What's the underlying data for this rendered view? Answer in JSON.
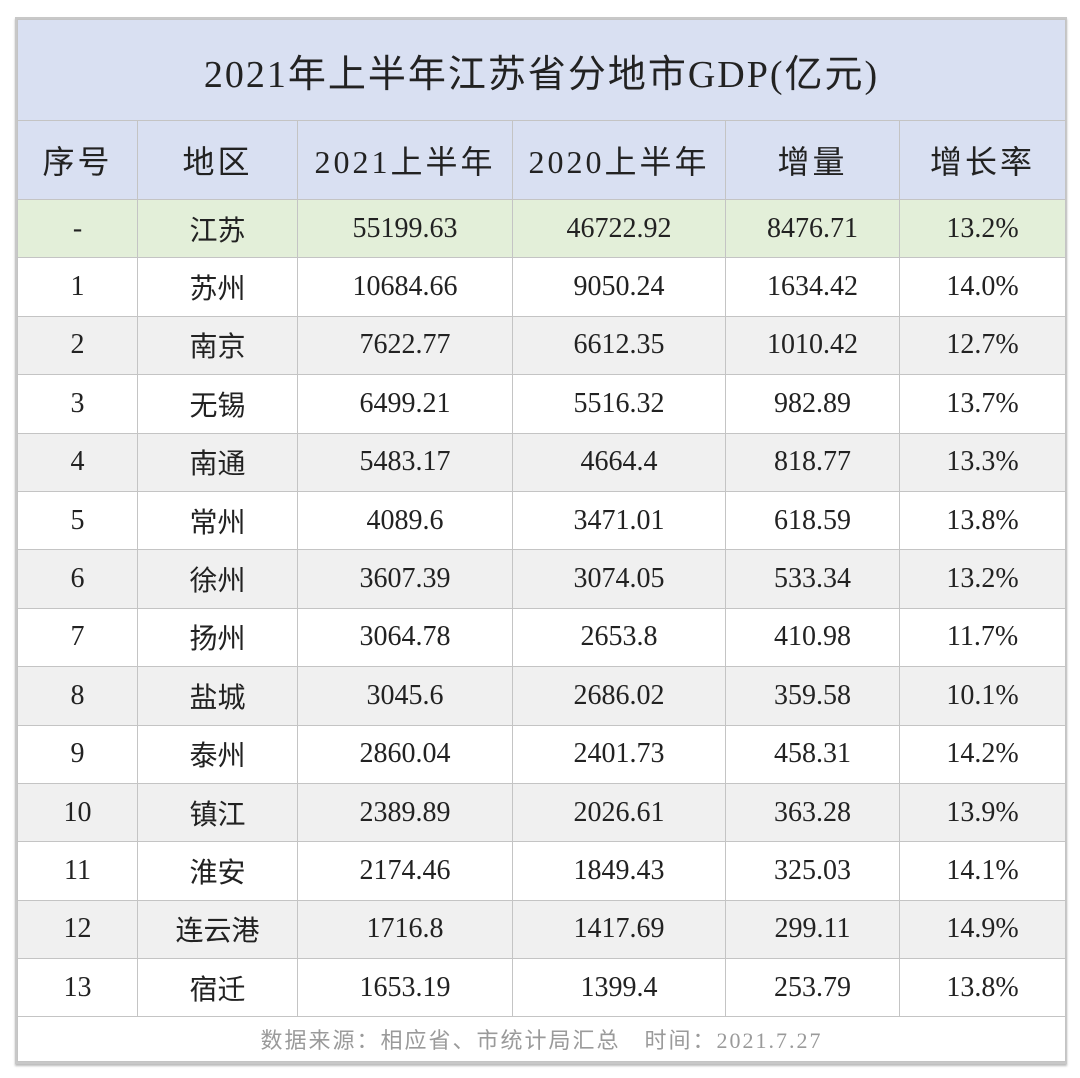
{
  "title": "2021年上半年江苏省分地市GDP(亿元)",
  "columns": [
    "序号",
    "地区",
    "2021上半年",
    "2020上半年",
    "增量",
    "增长率"
  ],
  "rows": [
    [
      "-",
      "江苏",
      "55199.63",
      "46722.92",
      "8476.71",
      "13.2%"
    ],
    [
      "1",
      "苏州",
      "10684.66",
      "9050.24",
      "1634.42",
      "14.0%"
    ],
    [
      "2",
      "南京",
      "7622.77",
      "6612.35",
      "1010.42",
      "12.7%"
    ],
    [
      "3",
      "无锡",
      "6499.21",
      "5516.32",
      "982.89",
      "13.7%"
    ],
    [
      "4",
      "南通",
      "5483.17",
      "4664.4",
      "818.77",
      "13.3%"
    ],
    [
      "5",
      "常州",
      "4089.6",
      "3471.01",
      "618.59",
      "13.8%"
    ],
    [
      "6",
      "徐州",
      "3607.39",
      "3074.05",
      "533.34",
      "13.2%"
    ],
    [
      "7",
      "扬州",
      "3064.78",
      "2653.8",
      "410.98",
      "11.7%"
    ],
    [
      "8",
      "盐城",
      "3045.6",
      "2686.02",
      "359.58",
      "10.1%"
    ],
    [
      "9",
      "泰州",
      "2860.04",
      "2401.73",
      "458.31",
      "14.2%"
    ],
    [
      "10",
      "镇江",
      "2389.89",
      "2026.61",
      "363.28",
      "13.9%"
    ],
    [
      "11",
      "淮安",
      "2174.46",
      "1849.43",
      "325.03",
      "14.1%"
    ],
    [
      "12",
      "连云港",
      "1716.8",
      "1417.69",
      "299.11",
      "14.9%"
    ],
    [
      "13",
      "宿迁",
      "1653.19",
      "1399.4",
      "253.79",
      "13.8%"
    ]
  ],
  "footer": "数据来源：相应省、市统计局汇总　时间：2021.7.27",
  "colors": {
    "header_bg": "#d9e0f2",
    "total_row_bg": "#e3efd9",
    "alt_row_bg": "#f0f0f0"
  }
}
